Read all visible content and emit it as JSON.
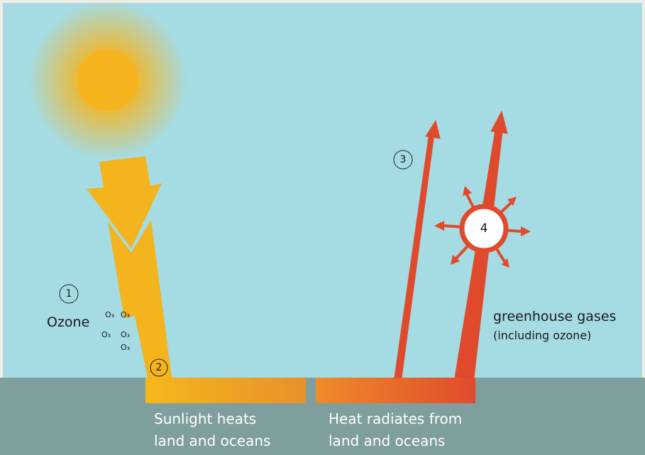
{
  "markers": [
    "1",
    "2",
    "3",
    "4"
  ],
  "ozone": {
    "label": "Ozone",
    "molecules": [
      "O₃",
      "O₃",
      "O₃",
      "O₃",
      "O₃"
    ]
  },
  "greenhouse": {
    "label": "greenhouse gases",
    "note": "(including ozone)"
  },
  "sunlight_caption": {
    "lines": [
      "Sunlight heats",
      "land and oceans"
    ]
  },
  "heat_caption": {
    "lines": [
      "Heat radiates from",
      "land and oceans"
    ]
  }
}
